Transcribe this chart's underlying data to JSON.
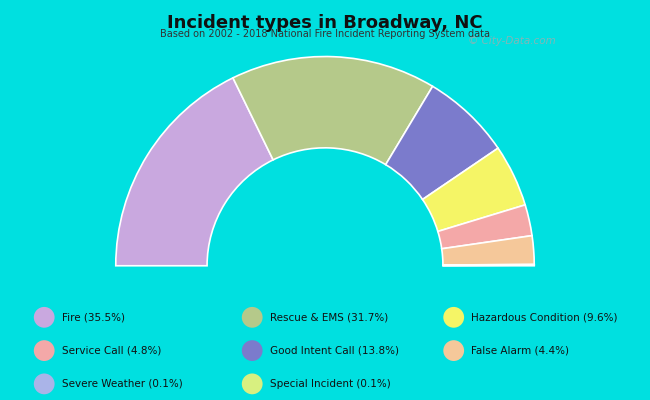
{
  "title": "Incident types in Broadway, NC",
  "subtitle": "Based on 2002 - 2018 National Fire Incident Reporting System data",
  "background_color": "#00e0e0",
  "chart_bg_color": "#d8efd8",
  "watermark": "© City-Data.com",
  "segments": [
    {
      "label": "Fire (35.5%)",
      "value": 35.5,
      "color": "#c9a8df"
    },
    {
      "label": "Rescue & EMS (31.7%)",
      "value": 31.7,
      "color": "#b5c98a"
    },
    {
      "label": "Good Intent Call (13.8%)",
      "value": 13.8,
      "color": "#7b7bcc"
    },
    {
      "label": "Hazardous Condition (9.6%)",
      "value": 9.6,
      "color": "#f5f566"
    },
    {
      "label": "Service Call (4.8%)",
      "value": 4.8,
      "color": "#f4a8a8"
    },
    {
      "label": "False Alarm (4.4%)",
      "value": 4.4,
      "color": "#f5c89a"
    },
    {
      "label": "Severe Weather (0.1%)",
      "value": 0.1,
      "color": "#aab4e8"
    },
    {
      "label": "Special Incident (0.1%)",
      "value": 0.1,
      "color": "#d8f080"
    }
  ],
  "legend_rows": [
    [
      {
        "label": "Fire (35.5%)",
        "color": "#c9a8df"
      },
      {
        "label": "Rescue & EMS (31.7%)",
        "color": "#b5c98a"
      },
      {
        "label": "Hazardous Condition (9.6%)",
        "color": "#f5f566"
      }
    ],
    [
      {
        "label": "Service Call (4.8%)",
        "color": "#f4a8a8"
      },
      {
        "label": "Good Intent Call (13.8%)",
        "color": "#7b7bcc"
      },
      {
        "label": "False Alarm (4.4%)",
        "color": "#f5c89a"
      }
    ],
    [
      {
        "label": "Severe Weather (0.1%)",
        "color": "#aab4e8"
      },
      {
        "label": "Special Incident (0.1%)",
        "color": "#d8f080"
      },
      {
        "label": "",
        "color": null
      }
    ]
  ],
  "outer_r": 1.1,
  "inner_r": 0.62,
  "chart_axes": [
    0.05,
    0.25,
    0.9,
    0.68
  ],
  "xlim": [
    -1.25,
    1.25
  ],
  "ylim": [
    -0.18,
    1.25
  ]
}
